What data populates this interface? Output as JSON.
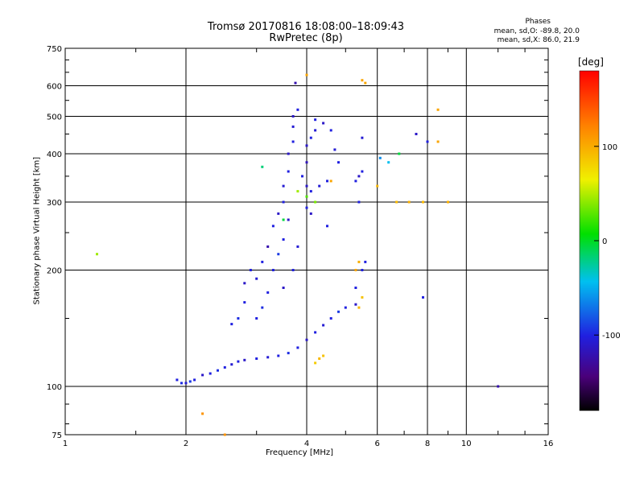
{
  "header": {
    "title_line1": "Tromsø 20170816 18:08:00–18:09:43",
    "title_line2": "RwPretec (8p)",
    "phase_heading": "Phases",
    "phase_o": "mean, sd,O: -89.8, 20.0",
    "phase_x": "mean, sd,X: 86.0, 21.9"
  },
  "axes": {
    "xlabel": "Frequency [MHz]",
    "ylabel": "Stationary phase Virtual Height [km]",
    "colorbar_label": "[deg]"
  },
  "colors": {
    "dominant_low": "#2030e0",
    "high": "#f0e020"
  },
  "chart_data": {
    "type": "scatter",
    "title": "Tromsø 20170816 18:08:00–18:09:43",
    "subtitle": "RwPretec (8p)",
    "xlabel": "Frequency [MHz]",
    "ylabel": "Stationary phase Virtual Height [km]",
    "x_scale": "log",
    "y_scale": "log",
    "xlim": [
      1,
      16
    ],
    "ylim": [
      75,
      750
    ],
    "x_ticks": [
      1,
      2,
      4,
      6,
      8,
      10,
      16
    ],
    "x_tick_labels": [
      "1",
      "2",
      "4",
      "6",
      "8",
      "10",
      "16"
    ],
    "x_grid_lines": [
      2,
      4,
      6,
      8,
      10
    ],
    "y_ticks": [
      75,
      100,
      200,
      300,
      400,
      500,
      600,
      750
    ],
    "y_tick_labels": [
      "75",
      "100",
      "200",
      "300",
      "400",
      "500",
      "600",
      "750"
    ],
    "y_grid_lines": [
      100,
      200,
      300,
      400,
      500,
      600
    ],
    "grid": true,
    "colorbar": {
      "label": "[deg]",
      "min": -180,
      "max": 180,
      "ticks": [
        100,
        0,
        -100
      ],
      "tick_labels": [
        "100",
        "0",
        "-100"
      ]
    },
    "series": [
      {
        "name": "",
        "points": [
          [
            1.9,
            104,
            -100
          ],
          [
            1.95,
            102,
            -95
          ],
          [
            2.0,
            102,
            -105
          ],
          [
            2.05,
            103,
            -90
          ],
          [
            2.1,
            104,
            -100
          ],
          [
            2.2,
            107,
            -110
          ],
          [
            2.3,
            108,
            -100
          ],
          [
            2.4,
            110,
            -95
          ],
          [
            2.5,
            112,
            -100
          ],
          [
            2.6,
            114,
            -105
          ],
          [
            2.7,
            116,
            -100
          ],
          [
            2.8,
            117,
            -110
          ],
          [
            3.0,
            118,
            -100
          ],
          [
            3.2,
            119,
            -105
          ],
          [
            3.4,
            120,
            -100
          ],
          [
            3.6,
            122,
            -95
          ],
          [
            3.8,
            126,
            -100
          ],
          [
            4.0,
            132,
            -110
          ],
          [
            4.2,
            138,
            -100
          ],
          [
            4.4,
            144,
            -105
          ],
          [
            4.6,
            150,
            -100
          ],
          [
            4.8,
            156,
            -90
          ],
          [
            5.0,
            160,
            -100
          ],
          [
            5.3,
            163,
            -110
          ],
          [
            2.6,
            145,
            -100
          ],
          [
            2.7,
            150,
            -95
          ],
          [
            2.8,
            165,
            -100
          ],
          [
            2.8,
            185,
            -110
          ],
          [
            2.9,
            200,
            -100
          ],
          [
            3.0,
            190,
            -105
          ],
          [
            3.1,
            210,
            -100
          ],
          [
            3.2,
            230,
            -120
          ],
          [
            3.3,
            260,
            -100
          ],
          [
            3.4,
            280,
            -110
          ],
          [
            3.5,
            300,
            -100
          ],
          [
            3.5,
            330,
            -105
          ],
          [
            3.6,
            360,
            -100
          ],
          [
            3.6,
            400,
            -110
          ],
          [
            3.7,
            430,
            -100
          ],
          [
            3.7,
            470,
            -105
          ],
          [
            3.7,
            500,
            -110
          ],
          [
            3.8,
            520,
            -100
          ],
          [
            3.75,
            610,
            -120
          ],
          [
            3.3,
            200,
            -100
          ],
          [
            3.4,
            220,
            -90
          ],
          [
            3.5,
            240,
            -100
          ],
          [
            3.6,
            270,
            -110
          ],
          [
            3.2,
            175,
            -100
          ],
          [
            3.1,
            160,
            -95
          ],
          [
            3.0,
            150,
            -100
          ],
          [
            3.5,
            180,
            -110
          ],
          [
            3.7,
            200,
            -100
          ],
          [
            3.8,
            230,
            -105
          ],
          [
            3.9,
            350,
            -100
          ],
          [
            4.0,
            330,
            -110
          ],
          [
            4.1,
            320,
            -100
          ],
          [
            4.3,
            330,
            -105
          ],
          [
            4.5,
            340,
            -100
          ],
          [
            4.0,
            420,
            -110
          ],
          [
            4.1,
            440,
            -100
          ],
          [
            4.2,
            460,
            -105
          ],
          [
            4.2,
            490,
            -100
          ],
          [
            4.4,
            480,
            -110
          ],
          [
            4.6,
            460,
            -100
          ],
          [
            4.7,
            410,
            -105
          ],
          [
            4.8,
            380,
            -100
          ],
          [
            4.0,
            380,
            -115
          ],
          [
            4.0,
            290,
            -100
          ],
          [
            4.1,
            280,
            -110
          ],
          [
            4.5,
            260,
            -100
          ],
          [
            5.3,
            340,
            -100
          ],
          [
            5.4,
            350,
            -110
          ],
          [
            5.5,
            360,
            -100
          ],
          [
            5.5,
            440,
            -105
          ],
          [
            5.4,
            300,
            -100
          ],
          [
            5.5,
            200,
            -100
          ],
          [
            5.6,
            210,
            -100
          ],
          [
            5.3,
            180,
            -100
          ],
          [
            4.2,
            115,
            80
          ],
          [
            4.3,
            118,
            90
          ],
          [
            4.4,
            120,
            85
          ],
          [
            5.3,
            200,
            100
          ],
          [
            5.4,
            210,
            95
          ],
          [
            5.4,
            160,
            90
          ],
          [
            5.5,
            170,
            85
          ],
          [
            5.6,
            610,
            100
          ],
          [
            4.6,
            340,
            100
          ],
          [
            6.7,
            300,
            90
          ],
          [
            7.2,
            300,
            95
          ],
          [
            7.8,
            300,
            90
          ],
          [
            8.5,
            430,
            100
          ],
          [
            9.0,
            300,
            95
          ],
          [
            6.0,
            330,
            90
          ],
          [
            4.0,
            640,
            100
          ],
          [
            4.0,
            310,
            20
          ],
          [
            4.2,
            300,
            30
          ],
          [
            3.5,
            270,
            -10
          ],
          [
            3.8,
            320,
            40
          ],
          [
            3.1,
            370,
            -20
          ],
          [
            6.1,
            390,
            -60
          ],
          [
            6.4,
            380,
            -40
          ],
          [
            6.8,
            400,
            -10
          ],
          [
            1.2,
            220,
            40
          ],
          [
            2.2,
            85,
            110
          ],
          [
            2.5,
            75,
            110
          ],
          [
            5.5,
            620,
            100
          ],
          [
            8.5,
            520,
            100
          ],
          [
            8.0,
            430,
            -100
          ],
          [
            7.5,
            450,
            -110
          ],
          [
            7.8,
            170,
            -100
          ],
          [
            12.0,
            100,
            -120
          ]
        ]
      }
    ],
    "annotations": []
  }
}
